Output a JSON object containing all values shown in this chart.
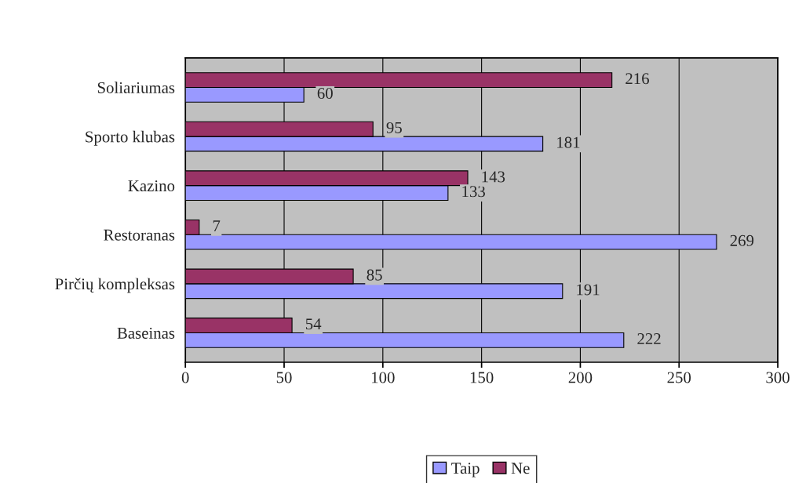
{
  "chart_data": {
    "type": "bar",
    "orientation": "horizontal",
    "categories": [
      "Soliariumas",
      "Sporto klubas",
      "Kazino",
      "Restoranas",
      "Pirčių kompleksas",
      "Baseinas"
    ],
    "series": [
      {
        "name": "Taip",
        "color": "#9999ff",
        "values": [
          60,
          181,
          133,
          269,
          191,
          222
        ]
      },
      {
        "name": "Ne",
        "color": "#993366",
        "values": [
          216,
          95,
          143,
          7,
          85,
          54
        ]
      }
    ],
    "xlim": [
      0,
      300
    ],
    "xticks": [
      0,
      50,
      100,
      150,
      200,
      250,
      300
    ],
    "grid": "x",
    "legend": "bottom",
    "data_labels": true
  }
}
